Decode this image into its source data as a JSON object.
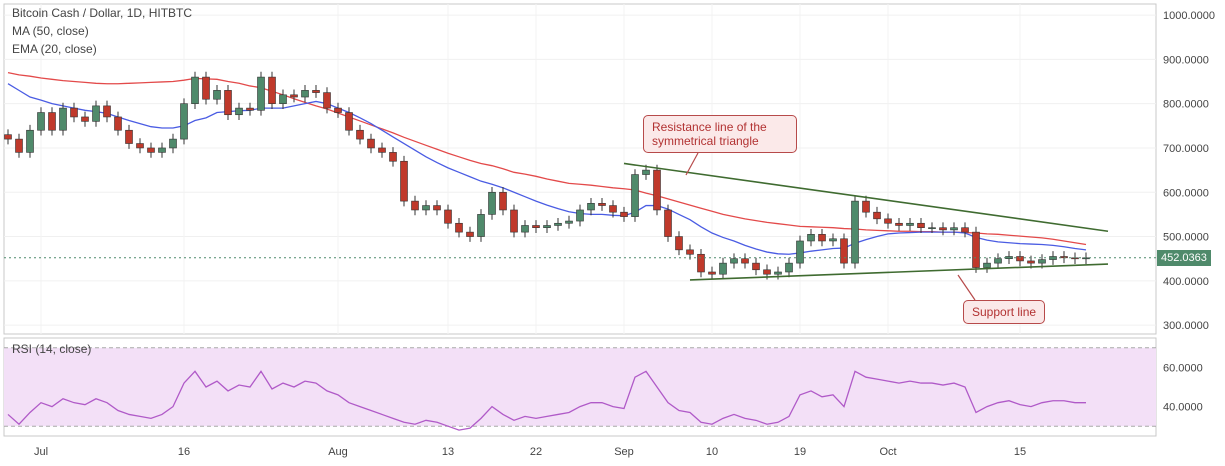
{
  "header": {
    "title": "Bitcoin Cash / Dollar, 1D, HITBTC",
    "ma_label": "MA (50, close)",
    "ema_label": "EMA (20, close)",
    "rsi_label": "RSI (14, close)"
  },
  "colors": {
    "up": "#4f8a6b",
    "down": "#c0392b",
    "ma": "#e34a4a",
    "ema": "#4a5ce3",
    "trendline": "#3f6b30",
    "rsi": "#b05ac8",
    "rsi_band": "#f3e0f7"
  },
  "annotations": {
    "resistance": "Resistance line of the symmetrical triangle",
    "support": "Support line"
  },
  "chart_data": [
    {
      "type": "candlestick",
      "title": "Bitcoin Cash / Dollar, 1D, HITBTC",
      "x_ticks": [
        "Jul",
        "16",
        "Aug",
        "13",
        "22",
        "Sep",
        "10",
        "19",
        "Oct",
        "15"
      ],
      "y_ticks": [
        "1000.0000",
        "900.0000",
        "800.0000",
        "700.0000",
        "600.0000",
        "500.0000",
        "400.0000",
        "300.0000"
      ],
      "ylim": [
        280,
        1025
      ],
      "last_price": "452.0363",
      "close": [
        720,
        690,
        740,
        780,
        740,
        790,
        770,
        760,
        795,
        770,
        740,
        710,
        700,
        690,
        700,
        720,
        800,
        860,
        810,
        830,
        775,
        790,
        785,
        860,
        800,
        820,
        815,
        830,
        825,
        790,
        780,
        740,
        720,
        700,
        690,
        670,
        580,
        560,
        570,
        560,
        530,
        510,
        500,
        550,
        600,
        560,
        510,
        525,
        520,
        525,
        530,
        535,
        560,
        575,
        570,
        555,
        545,
        640,
        650,
        560,
        500,
        470,
        460,
        420,
        415,
        440,
        450,
        440,
        425,
        415,
        420,
        440,
        490,
        505,
        490,
        495,
        440,
        580,
        555,
        540,
        530,
        525,
        530,
        520,
        520,
        515,
        520,
        510,
        430,
        440,
        450,
        455,
        445,
        440,
        448,
        455,
        452,
        450,
        452
      ],
      "ma50": [
        870,
        865,
        862,
        858,
        855,
        852,
        850,
        848,
        846,
        845,
        845,
        846,
        847,
        848,
        849,
        850,
        853,
        857,
        856,
        855,
        850,
        846,
        840,
        836,
        828,
        820,
        811,
        803,
        795,
        788,
        779,
        770,
        761,
        752,
        743,
        734,
        724,
        715,
        706,
        697,
        688,
        680,
        672,
        665,
        660,
        653,
        645,
        641,
        636,
        630,
        625,
        620,
        618,
        616,
        613,
        610,
        608,
        605,
        598,
        592,
        585,
        578,
        571,
        564,
        557,
        550,
        545,
        540,
        536,
        532,
        529,
        526,
        523,
        522,
        521,
        520,
        518,
        517,
        515,
        514,
        513,
        512,
        512,
        511,
        511,
        510,
        510,
        509,
        508,
        506,
        505,
        503,
        501,
        499,
        497,
        494,
        490,
        486,
        482
      ],
      "ema20": [
        845,
        830,
        815,
        808,
        800,
        795,
        790,
        785,
        782,
        778,
        770,
        762,
        755,
        748,
        745,
        745,
        750,
        762,
        768,
        780,
        782,
        784,
        785,
        790,
        790,
        790,
        795,
        800,
        805,
        800,
        790,
        780,
        768,
        755,
        740,
        725,
        710,
        695,
        680,
        667,
        655,
        645,
        635,
        625,
        618,
        610,
        600,
        590,
        580,
        571,
        563,
        556,
        552,
        550,
        550,
        548,
        547,
        555,
        570,
        570,
        562,
        550,
        538,
        522,
        508,
        498,
        490,
        480,
        472,
        465,
        461,
        460,
        463,
        467,
        470,
        473,
        474,
        485,
        493,
        500,
        506,
        508,
        509,
        510,
        510,
        510,
        510,
        508,
        498,
        492,
        488,
        486,
        484,
        483,
        482,
        480,
        477,
        473,
        470
      ]
    },
    {
      "type": "line",
      "title": "RSI (14, close)",
      "y_ticks": [
        "60.0000",
        "40.0000"
      ],
      "ylim": [
        25,
        75
      ],
      "band": [
        30,
        70
      ],
      "values": [
        36,
        31,
        37,
        42,
        40,
        44,
        42,
        41,
        44,
        42,
        38,
        36,
        35,
        34,
        36,
        40,
        52,
        58,
        50,
        53,
        48,
        51,
        50,
        58,
        49,
        52,
        50,
        53,
        52,
        48,
        46,
        42,
        40,
        38,
        36,
        34,
        32,
        31,
        33,
        32,
        30,
        28,
        29,
        34,
        40,
        36,
        33,
        35,
        34,
        35,
        36,
        37,
        40,
        42,
        42,
        40,
        39,
        55,
        58,
        50,
        42,
        38,
        37,
        32,
        31,
        34,
        36,
        34,
        33,
        31,
        32,
        35,
        46,
        48,
        45,
        46,
        40,
        58,
        55,
        54,
        53,
        52,
        53,
        52,
        52,
        51,
        52,
        50,
        37,
        40,
        42,
        43,
        41,
        40,
        42,
        43,
        43,
        42,
        42
      ]
    }
  ]
}
